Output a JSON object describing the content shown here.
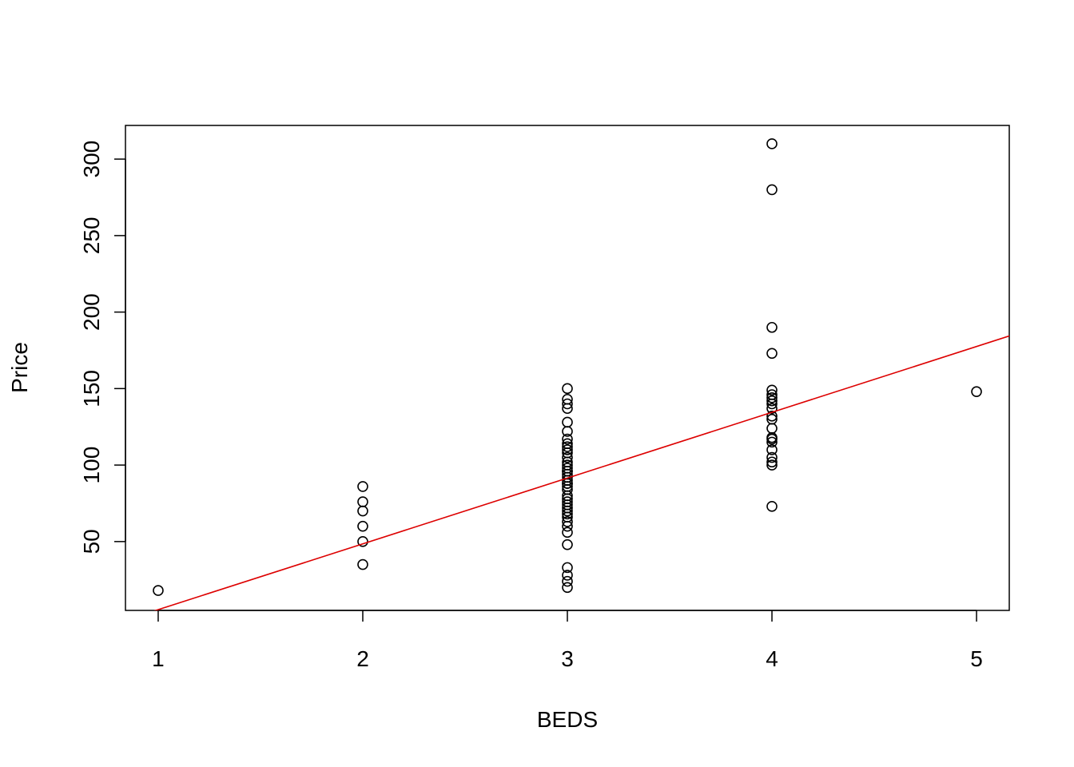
{
  "chart_data": {
    "type": "scatter",
    "title": "",
    "xlabel": "BEDS",
    "ylabel": "Price",
    "xlim": [
      0.84,
      5.16
    ],
    "ylim": [
      5,
      322
    ],
    "x_ticks": [
      1,
      2,
      3,
      4,
      5
    ],
    "y_ticks": [
      50,
      100,
      150,
      200,
      250,
      300
    ],
    "grid": false,
    "points": {
      "x": [
        1,
        2,
        2,
        2,
        2,
        2,
        2,
        3,
        3,
        3,
        3,
        3,
        3,
        3,
        3,
        3,
        3,
        3,
        3,
        3,
        3,
        3,
        3,
        3,
        3,
        3,
        3,
        3,
        3,
        3,
        3,
        3,
        3,
        3,
        3,
        3,
        3,
        3,
        3,
        3,
        3,
        3,
        3,
        3,
        3,
        3,
        3,
        4,
        4,
        4,
        4,
        4,
        4,
        4,
        4,
        4,
        4,
        4,
        4,
        4,
        4,
        4,
        4,
        4,
        4,
        4,
        4,
        4,
        5
      ],
      "y": [
        18,
        86,
        76,
        70,
        60,
        50,
        35,
        150,
        143,
        140,
        137,
        128,
        122,
        117,
        114,
        112,
        110,
        108,
        105,
        102,
        100,
        98,
        96,
        94,
        92,
        90,
        88,
        86,
        84,
        80,
        76,
        74,
        72,
        70,
        68,
        66,
        60,
        56,
        48,
        33,
        28,
        24,
        20,
        96,
        88,
        78,
        63,
        310,
        280,
        190,
        173,
        149,
        146,
        142,
        140,
        137,
        132,
        130,
        124,
        117,
        115,
        110,
        105,
        102,
        100,
        73,
        144,
        118,
        148
      ]
    },
    "fit_line": {
      "intercept": -37.5,
      "slope": 43.0,
      "color": "#dd0000"
    },
    "point_color": "#000000"
  }
}
